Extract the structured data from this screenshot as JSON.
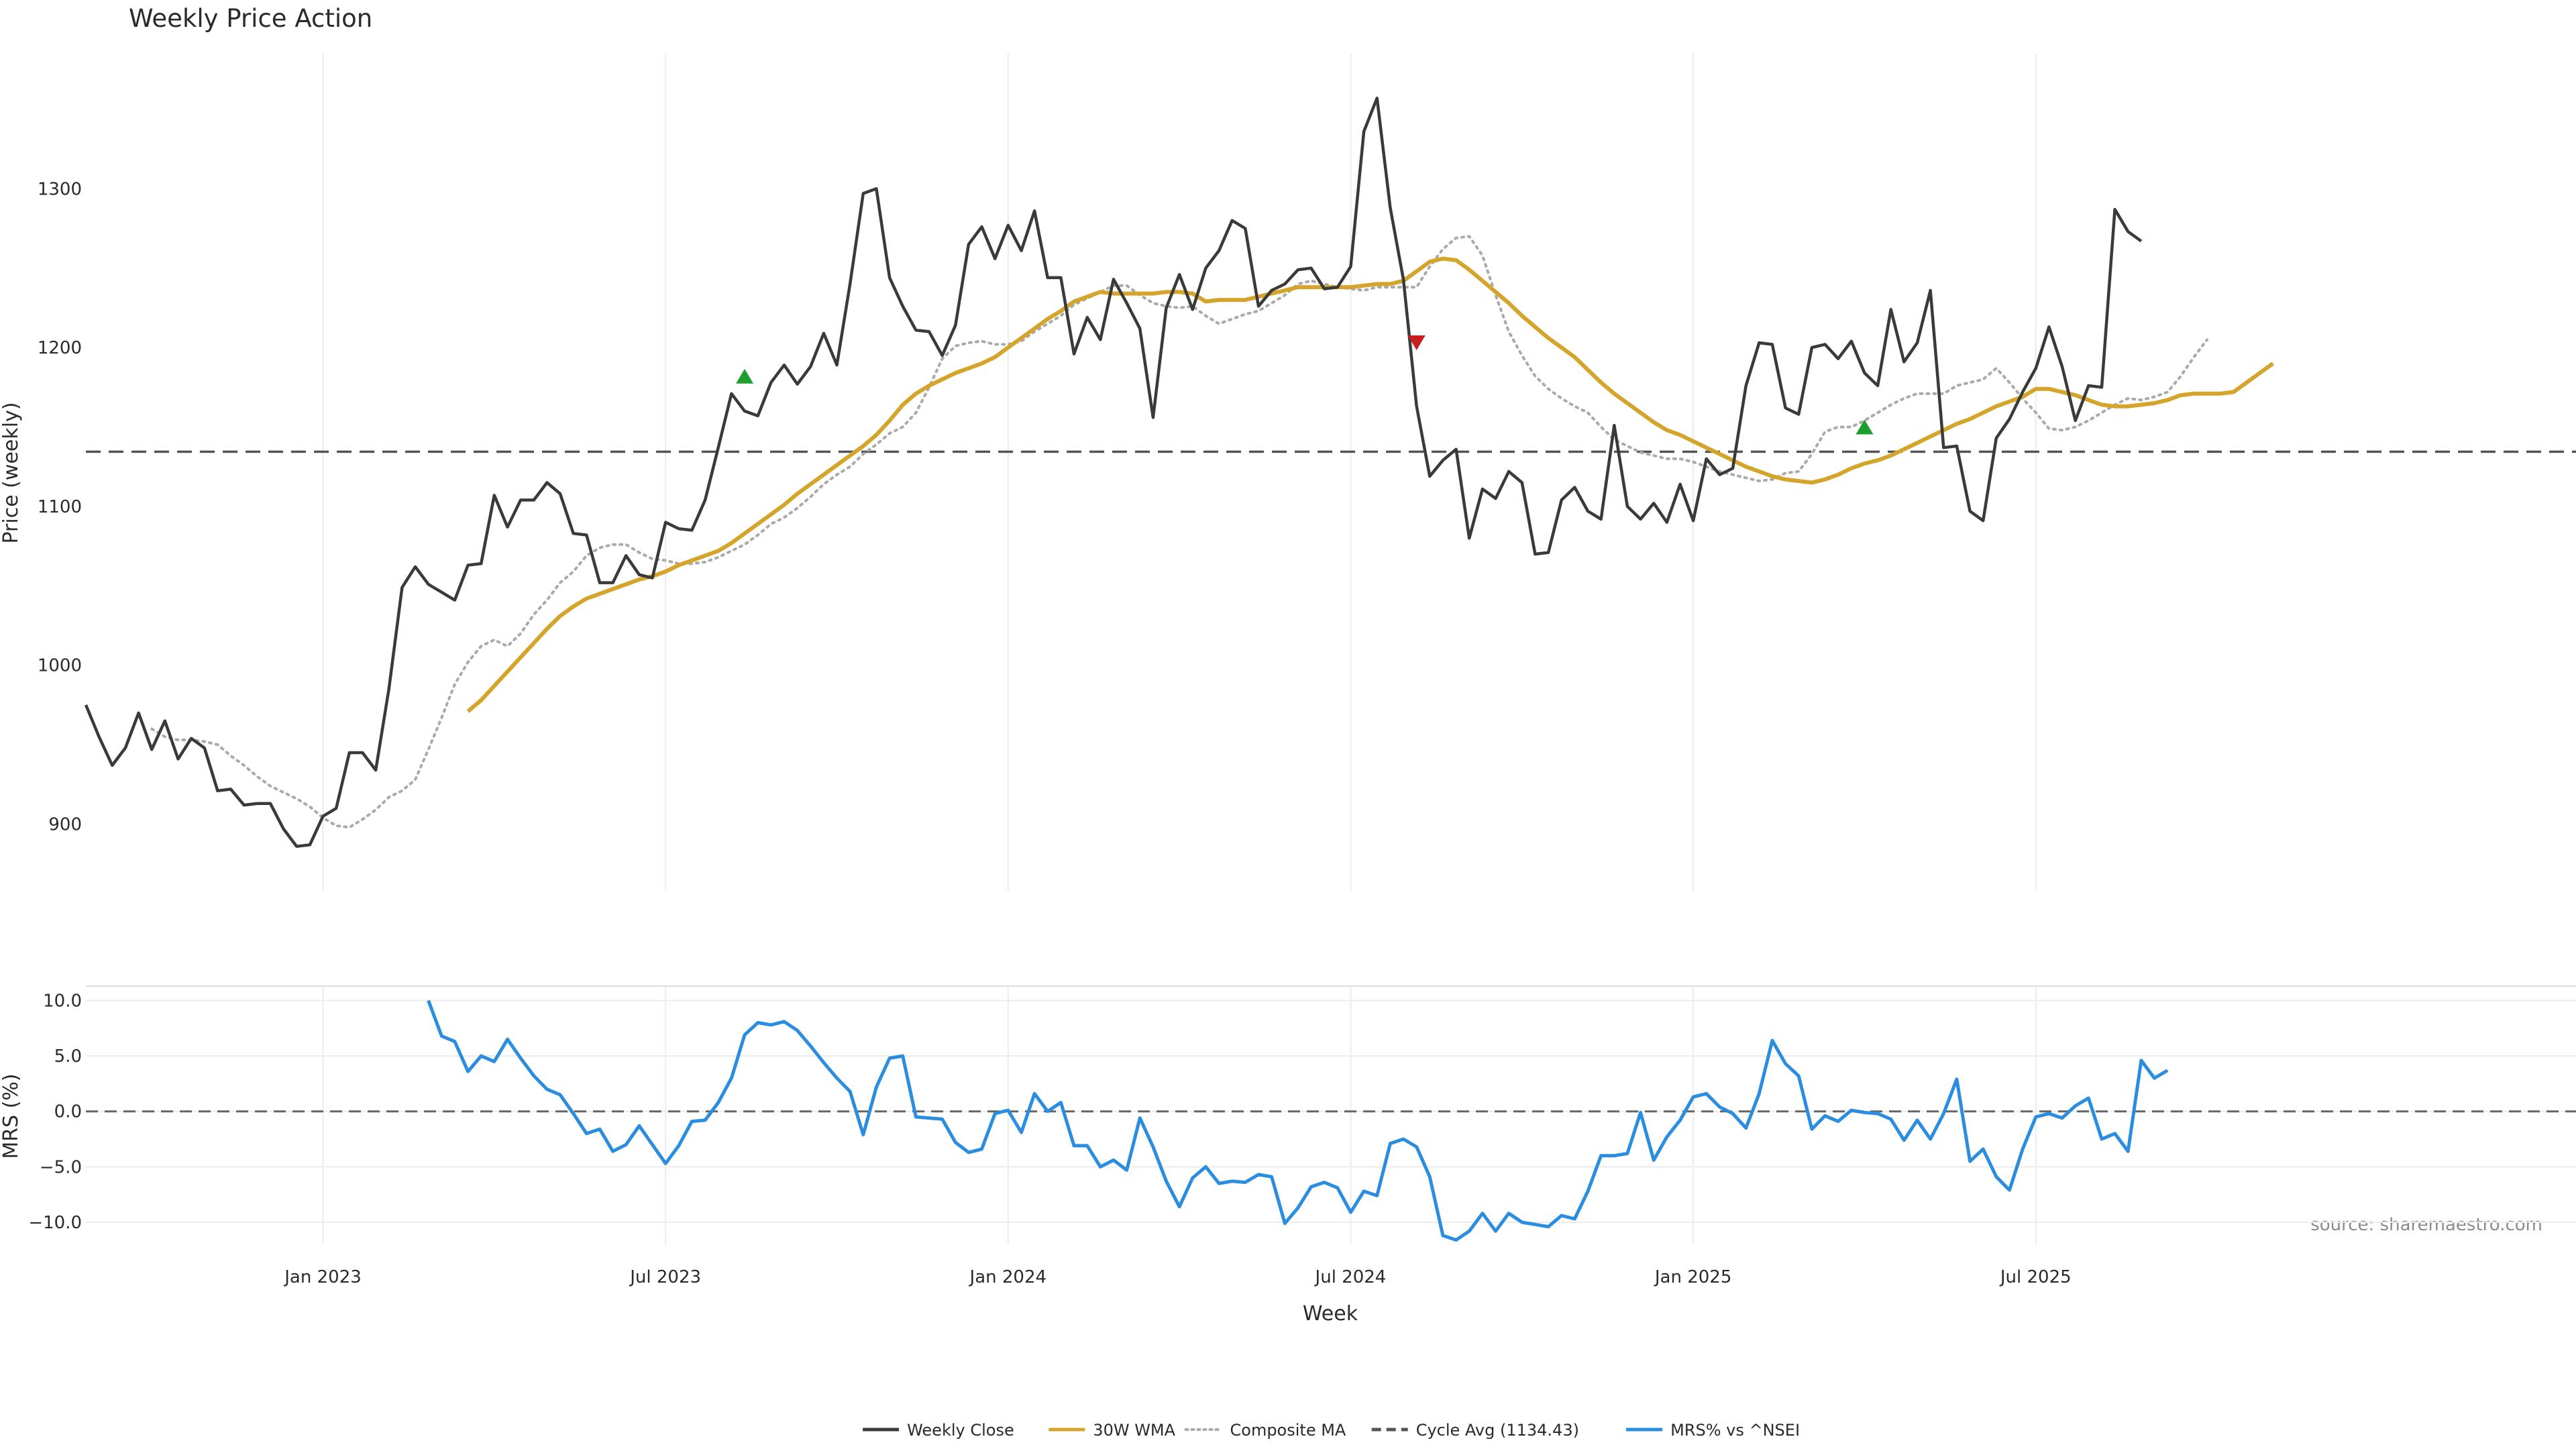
{
  "colors": {
    "close": "#3a3a3a",
    "wma": "#d4a52a",
    "composite": "#aaaaaa",
    "cycle": "#555555",
    "mrs": "#2a8de0",
    "buy": "#1e9e2e",
    "sell": "#c81e1e",
    "grid": "#ececec"
  },
  "chart_data": [
    {
      "type": "line",
      "title": "Weekly Price Action",
      "ylabel": "Price (weekly)",
      "xlabel": "Week",
      "x_tick_labels": [
        "Jan 2023",
        "Jul 2023",
        "Jan 2024",
        "Jul 2024",
        "Jan 2025",
        "Jul 2025"
      ],
      "y_ticks": [
        900,
        1000,
        1100,
        1200,
        1300
      ],
      "ylim": [
        858,
        1385
      ],
      "x_start_week": -18,
      "x_end_week": 171,
      "grid": "vertical",
      "cycle_avg": 1134.43,
      "series": [
        {
          "name": "Weekly Close",
          "values": [
            975,
            955,
            937,
            948,
            970,
            947,
            965,
            941,
            954,
            948,
            921,
            922,
            912,
            913,
            913,
            897,
            886,
            887,
            905,
            910,
            945,
            945,
            934,
            985,
            1049,
            1062,
            1051,
            1046,
            1041,
            1063,
            1064,
            1107,
            1087,
            1104,
            1104,
            1115,
            1108,
            1083,
            1082,
            1052,
            1052,
            1069,
            1057,
            1055,
            1090,
            1086,
            1085,
            1104,
            1137,
            1171,
            1160,
            1157,
            1178,
            1189,
            1177,
            1188,
            1209,
            1189,
            1240,
            1297,
            1300,
            1244,
            1226,
            1211,
            1210,
            1195,
            1214,
            1265,
            1276,
            1256,
            1277,
            1261,
            1286,
            1244,
            1244,
            1196,
            1219,
            1205,
            1243,
            1228,
            1212,
            1156,
            1225,
            1246,
            1224,
            1250,
            1261,
            1280,
            1275,
            1226,
            1236,
            1240,
            1249,
            1250,
            1237,
            1238,
            1251,
            1336,
            1357,
            1288,
            1243,
            1163,
            1119,
            1129,
            1136,
            1080,
            1111,
            1105,
            1122,
            1115,
            1070,
            1071,
            1104,
            1112,
            1097,
            1092,
            1151,
            1100,
            1092,
            1102,
            1090,
            1114,
            1091,
            1130,
            1120,
            1124,
            1176,
            1203,
            1202,
            1162,
            1158,
            1200,
            1202,
            1193,
            1204,
            1184,
            1176,
            1224,
            1191,
            1203,
            1236,
            1137,
            1138,
            1097,
            1091,
            1143,
            1155,
            1172,
            1187,
            1213,
            1188,
            1154,
            1176,
            1175,
            1287,
            1273,
            1267
          ]
        },
        {
          "name": "30W WMA",
          "start_week": 11,
          "values": [
            971,
            978,
            987,
            996,
            1005,
            1014,
            1023,
            1031,
            1037,
            1042,
            1045,
            1048,
            1051,
            1054,
            1056,
            1059,
            1063,
            1066,
            1069,
            1072,
            1077,
            1083,
            1089,
            1095,
            1101,
            1108,
            1114,
            1120,
            1126,
            1132,
            1138,
            1145,
            1154,
            1164,
            1171,
            1176,
            1180,
            1184,
            1187,
            1190,
            1194,
            1200,
            1206,
            1212,
            1218,
            1223,
            1229,
            1232,
            1235,
            1234,
            1234,
            1234,
            1234,
            1235,
            1235,
            1234,
            1229,
            1230,
            1230,
            1230,
            1232,
            1234,
            1236,
            1238,
            1238,
            1238,
            1238,
            1238,
            1239,
            1240,
            1240,
            1242,
            1248,
            1254,
            1256,
            1255,
            1249,
            1242,
            1235,
            1228,
            1220,
            1213,
            1206,
            1200,
            1194,
            1186,
            1178,
            1171,
            1165,
            1159,
            1153,
            1148,
            1145,
            1141,
            1137,
            1133,
            1129,
            1125,
            1122,
            1119,
            1117,
            1116,
            1115,
            1117,
            1120,
            1124,
            1127,
            1129,
            1132,
            1136,
            1140,
            1144,
            1148,
            1152,
            1155,
            1159,
            1163,
            1166,
            1169,
            1174,
            1174,
            1172,
            1170,
            1167,
            1164,
            1163,
            1163,
            1164,
            1165,
            1167,
            1170,
            1171,
            1171,
            1171,
            1172,
            1178,
            1184,
            1190
          ]
        },
        {
          "name": "Composite MA",
          "start_week": -13,
          "values": [
            960,
            955,
            953,
            953,
            952,
            950,
            943,
            937,
            930,
            924,
            920,
            916,
            911,
            904,
            899,
            898,
            903,
            909,
            917,
            921,
            928,
            947,
            967,
            988,
            1002,
            1012,
            1016,
            1012,
            1020,
            1032,
            1041,
            1052,
            1059,
            1069,
            1074,
            1076,
            1076,
            1071,
            1067,
            1066,
            1064,
            1064,
            1065,
            1068,
            1072,
            1076,
            1082,
            1089,
            1093,
            1099,
            1106,
            1114,
            1120,
            1125,
            1133,
            1139,
            1146,
            1150,
            1159,
            1175,
            1193,
            1201,
            1203,
            1204,
            1202,
            1202,
            1204,
            1210,
            1215,
            1220,
            1227,
            1231,
            1235,
            1239,
            1239,
            1233,
            1228,
            1226,
            1225,
            1226,
            1220,
            1215,
            1218,
            1221,
            1223,
            1228,
            1233,
            1240,
            1242,
            1240,
            1238,
            1237,
            1236,
            1238,
            1238,
            1238,
            1238,
            1251,
            1262,
            1269,
            1270,
            1258,
            1233,
            1210,
            1195,
            1182,
            1174,
            1168,
            1163,
            1159,
            1150,
            1142,
            1138,
            1134,
            1132,
            1130,
            1130,
            1128,
            1125,
            1122,
            1120,
            1118,
            1116,
            1117,
            1121,
            1122,
            1133,
            1147,
            1150,
            1150,
            1154,
            1159,
            1164,
            1168,
            1171,
            1171,
            1171,
            1176,
            1178,
            1180,
            1187,
            1178,
            1168,
            1159,
            1149,
            1148,
            1150,
            1154,
            1159,
            1164,
            1168,
            1167,
            1169,
            1172,
            1182,
            1194,
            1205
          ]
        }
      ],
      "signals": [
        {
          "type": "buy",
          "week": 32,
          "price": 1182
        },
        {
          "type": "sell",
          "week": 83,
          "price": 1203
        },
        {
          "type": "buy",
          "week": 117,
          "price": 1150
        }
      ]
    },
    {
      "type": "line",
      "ylabel": "MRS (%)",
      "y_ticks": [
        10.0,
        5.0,
        0.0,
        -5.0,
        -10.0
      ],
      "y_tick_labels": [
        "10.0",
        "5.0",
        "0.0",
        "−5.0",
        "−10.0"
      ],
      "ylim": [
        -12,
        11.3
      ],
      "zero_line": 0,
      "series": [
        {
          "name": "MRS% vs ^NSEI",
          "start_week": 8,
          "values": [
            10.0,
            6.8,
            6.3,
            3.6,
            5.0,
            4.5,
            6.5,
            4.8,
            3.2,
            2.0,
            1.5,
            -0.2,
            -2.0,
            -1.6,
            -3.6,
            -3.0,
            -1.3,
            -3.0,
            -4.7,
            -3.1,
            -0.9,
            -0.8,
            0.8,
            3.0,
            6.9,
            8.0,
            7.8,
            8.1,
            7.3,
            5.9,
            4.4,
            3.0,
            1.8,
            -2.1,
            2.2,
            4.8,
            5.0,
            -0.5,
            -0.6,
            -0.7,
            -2.8,
            -3.7,
            -3.4,
            -0.2,
            0.1,
            -1.9,
            1.6,
            0.0,
            0.8,
            -3.1,
            -3.1,
            -5.0,
            -4.4,
            -5.3,
            -0.6,
            -3.2,
            -6.3,
            -8.6,
            -6.0,
            -5.0,
            -6.5,
            -6.3,
            -6.4,
            -5.7,
            -5.9,
            -10.1,
            -8.7,
            -6.8,
            -6.4,
            -6.9,
            -9.1,
            -7.2,
            -7.6,
            -2.9,
            -2.5,
            -3.2,
            -5.9,
            -11.2,
            -11.6,
            -10.8,
            -9.2,
            -10.8,
            -9.2,
            -10.0,
            -10.2,
            -10.4,
            -9.4,
            -9.7,
            -7.2,
            -4.0,
            -4.0,
            -3.8,
            -0.1,
            -4.4,
            -2.3,
            -0.8,
            1.3,
            1.6,
            0.4,
            -0.2,
            -1.5,
            1.6,
            6.4,
            4.3,
            3.2,
            -1.6,
            -0.4,
            -0.9,
            0.1,
            -0.1,
            -0.2,
            -0.7,
            -2.6,
            -0.8,
            -2.5,
            -0.2,
            2.9,
            -4.5,
            -3.4,
            -5.9,
            -7.1,
            -3.4,
            -0.5,
            -0.2,
            -0.6,
            0.5,
            1.2,
            -2.5,
            -2.0,
            -3.6,
            4.6,
            3.0,
            3.7
          ]
        }
      ],
      "annotation": "source: sharemaestro.com"
    }
  ],
  "legend": {
    "placement": "bottom-center",
    "items": [
      {
        "key": "close",
        "label": "Weekly Close",
        "style": "solid"
      },
      {
        "key": "wma",
        "label": "30W WMA",
        "style": "solid"
      },
      {
        "key": "composite",
        "label": "Composite MA",
        "style": "dotted"
      },
      {
        "key": "cycle",
        "label": "Cycle Avg (1134.43)",
        "style": "dashed"
      },
      {
        "key": "mrs",
        "label": "MRS% vs ^NSEI",
        "style": "solid"
      }
    ]
  }
}
